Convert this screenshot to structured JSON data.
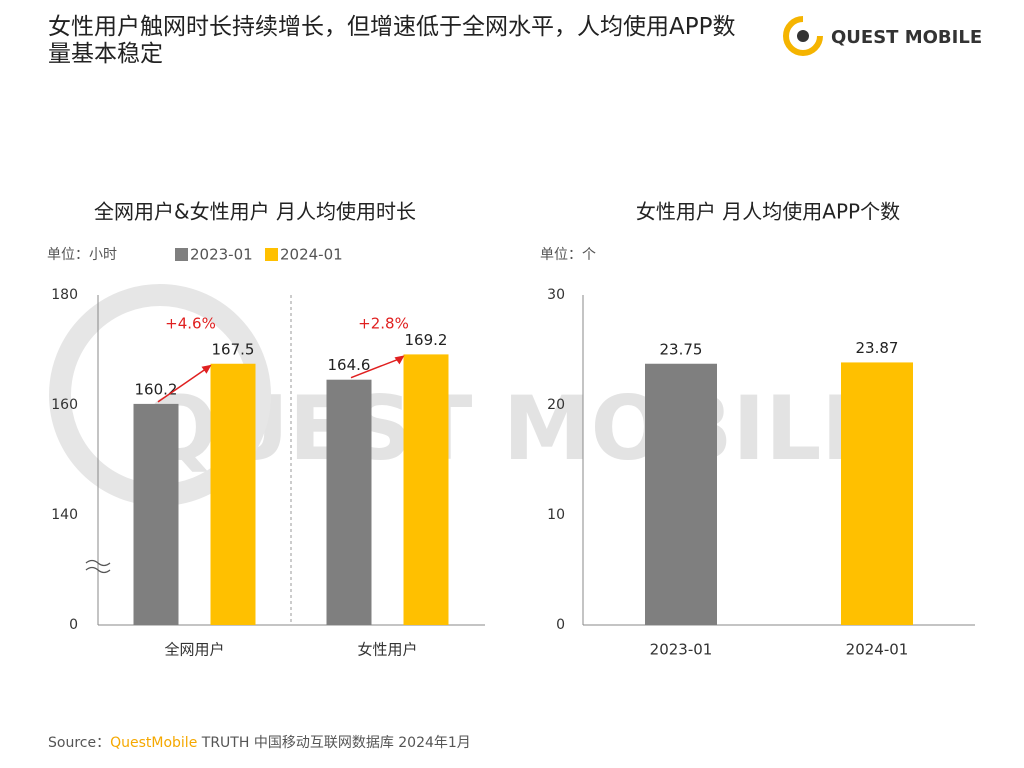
{
  "title": "女性用户触网时长持续增长，但增速低于全网水平，人均使用APP数量基本稳定",
  "logo": "QUEST MOBILE",
  "watermark": "QUEST MOBILE",
  "source": {
    "label": "Source：",
    "brand": "QuestMobile",
    "text": "TRUTH 中国移动互联网数据库 2024年1月"
  },
  "chart_data": [
    {
      "type": "bar",
      "title": "全网用户&女性用户 月人均使用时长",
      "unit": "单位：小时",
      "categories": [
        "全网用户",
        "女性用户"
      ],
      "series": [
        {
          "name": "2023-01",
          "color": "#7f7f7f",
          "values": [
            160.2,
            164.6
          ]
        },
        {
          "name": "2024-01",
          "color": "#ffc000",
          "values": [
            167.5,
            169.2
          ]
        }
      ],
      "change_labels": [
        "+4.6%",
        "+2.8%"
      ],
      "ylim": [
        0,
        180
      ],
      "yticks": [
        0,
        140,
        160,
        180
      ],
      "axis_break": true,
      "grid": false
    },
    {
      "type": "bar",
      "title": "女性用户 月人均使用APP个数",
      "unit": "单位：个",
      "categories": [
        "2023-01",
        "2024-01"
      ],
      "values": [
        23.75,
        23.87
      ],
      "colors": [
        "#7f7f7f",
        "#ffc000"
      ],
      "ylim": [
        0,
        30
      ],
      "yticks": [
        0,
        10,
        20,
        30
      ],
      "grid": false
    }
  ]
}
